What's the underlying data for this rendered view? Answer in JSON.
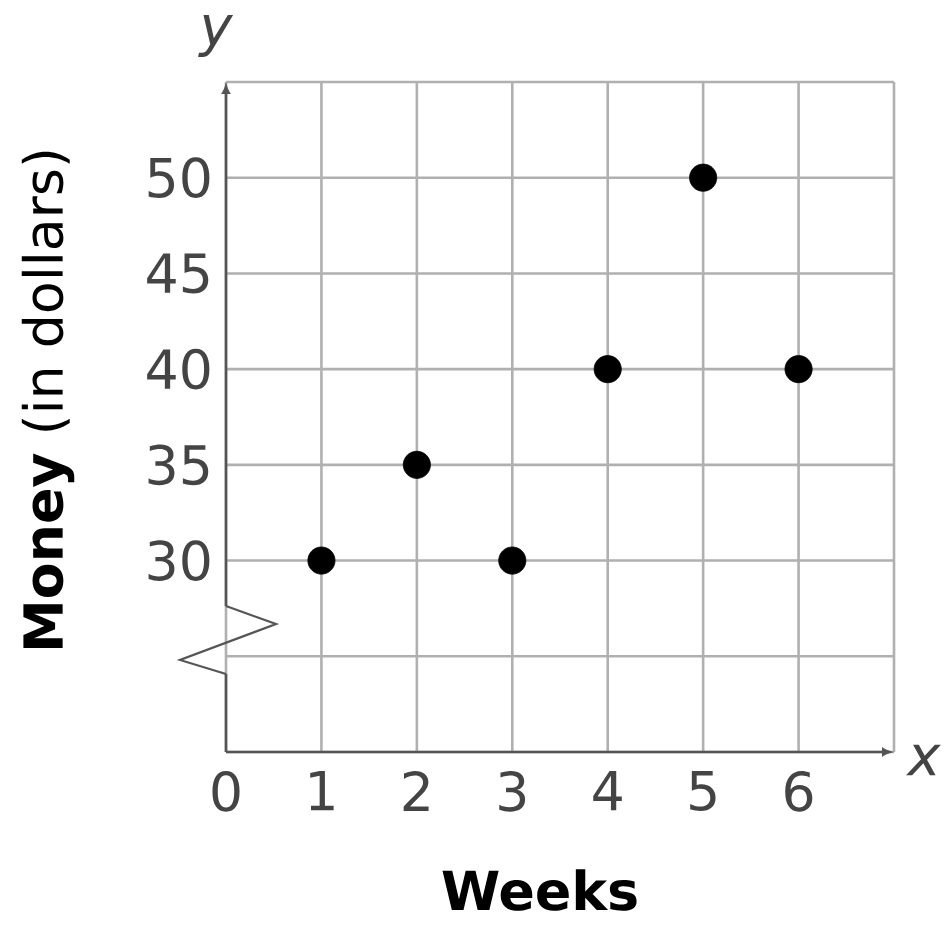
{
  "chart_data": {
    "type": "scatter",
    "xlabel": "Weeks",
    "ylabel": "**Money** (in dollars)",
    "annotations": [
      "x",
      "y"
    ],
    "series": [
      {
        "color": "#000000",
        "x": [
          1,
          2,
          3,
          4,
          5,
          6
        ],
        "values": [
          30,
          35,
          30,
          40,
          50,
          40
        ]
      }
    ],
    "xlim": [
      0,
      7
    ],
    "ylim": [
      20,
      55
    ],
    "xticks": [
      0,
      1,
      2,
      3,
      4,
      5,
      6,
      {
        "value": 7,
        "label": null
      }
    ],
    "yticks": [
      {
        "value": 20,
        "label": null
      },
      {
        "value": 25,
        "label": null
      },
      30,
      35,
      40,
      45,
      50,
      {
        "value": 55,
        "label": null
      }
    ],
    "grid": true,
    "marker": "circle"
  }
}
